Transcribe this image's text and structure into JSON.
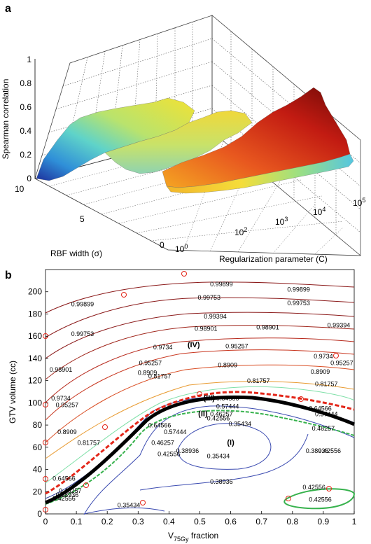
{
  "chart_data": [
    {
      "panel": "a",
      "type": "surface3d",
      "zlabel": "Spearman correlation",
      "ylabel": "RBF width (σ)",
      "xlabel": "Regularization parameter (C)",
      "zticks": [
        "0",
        "0.2",
        "0.4",
        "0.6",
        "0.8",
        "1"
      ],
      "yticks": [
        "10",
        "5",
        "0"
      ],
      "xticks": [
        {
          "base": "10",
          "exp": "0"
        },
        {
          "base": "10",
          "exp": "2"
        },
        {
          "base": "10",
          "exp": "3"
        },
        {
          "base": "10",
          "exp": "4"
        },
        {
          "base": "10",
          "exp": "5"
        }
      ],
      "zlim": [
        0,
        1
      ],
      "ylim": [
        0,
        10
      ],
      "xlim_log10": [
        0,
        5
      ],
      "colormap": [
        "#1d2f9c",
        "#2f8fd8",
        "#5fd3c9",
        "#b9e36d",
        "#f2e233",
        "#f5a623",
        "#d9281b",
        "#7a0b08"
      ]
    },
    {
      "panel": "b",
      "type": "contour",
      "xlabel": {
        "base": "V",
        "sub": "75Gy",
        "rest": " fraction"
      },
      "ylabel": "GTV volume (cc)",
      "xlim": [
        0,
        1
      ],
      "ylim": [
        0,
        220
      ],
      "xticks": [
        "0",
        "0.1",
        "0.2",
        "0.3",
        "0.4",
        "0.5",
        "0.6",
        "0.7",
        "0.8",
        "0.9",
        "1"
      ],
      "yticks": [
        "0",
        "20",
        "40",
        "60",
        "80",
        "100",
        "120",
        "140",
        "160",
        "180",
        "200"
      ],
      "level_labels": [
        {
          "text": "0.99899",
          "x": 0.12,
          "y": 187
        },
        {
          "text": "0.99899",
          "x": 0.57,
          "y": 205
        },
        {
          "text": "0.99899",
          "x": 0.82,
          "y": 200
        },
        {
          "text": "0.99753",
          "x": 0.12,
          "y": 160
        },
        {
          "text": "0.99753",
          "x": 0.53,
          "y": 193
        },
        {
          "text": "0.99753",
          "x": 0.82,
          "y": 188
        },
        {
          "text": "0.99394",
          "x": 0.55,
          "y": 176
        },
        {
          "text": "0.99394",
          "x": 0.95,
          "y": 168
        },
        {
          "text": "0.98901",
          "x": 0.05,
          "y": 128
        },
        {
          "text": "0.98901",
          "x": 0.52,
          "y": 165
        },
        {
          "text": "0.98901",
          "x": 0.72,
          "y": 166
        },
        {
          "text": "0.9734",
          "x": 0.05,
          "y": 102
        },
        {
          "text": "0.9734",
          "x": 0.38,
          "y": 148
        },
        {
          "text": "0.9734",
          "x": 0.9,
          "y": 140
        },
        {
          "text": "0.95257",
          "x": 0.07,
          "y": 96
        },
        {
          "text": "0.95257",
          "x": 0.34,
          "y": 134
        },
        {
          "text": "0.95257",
          "x": 0.62,
          "y": 149
        },
        {
          "text": "0.95257",
          "x": 0.96,
          "y": 134
        },
        {
          "text": "0.8909",
          "x": 0.07,
          "y": 72
        },
        {
          "text": "0.8909",
          "x": 0.33,
          "y": 125
        },
        {
          "text": "0.8909",
          "x": 0.59,
          "y": 132
        },
        {
          "text": "0.8909",
          "x": 0.89,
          "y": 126
        },
        {
          "text": "0.81757",
          "x": 0.14,
          "y": 62
        },
        {
          "text": "0.81757",
          "x": 0.37,
          "y": 122
        },
        {
          "text": "0.81757",
          "x": 0.69,
          "y": 118
        },
        {
          "text": "0.81757",
          "x": 0.91,
          "y": 115
        },
        {
          "text": "0.64566",
          "x": 0.06,
          "y": 30
        },
        {
          "text": "0.64566",
          "x": 0.37,
          "y": 78
        },
        {
          "text": "0.64566",
          "x": 0.59,
          "y": 102
        },
        {
          "text": "0.64566",
          "x": 0.89,
          "y": 93
        },
        {
          "text": "0.57444",
          "x": 0.42,
          "y": 72
        },
        {
          "text": "0.57444",
          "x": 0.59,
          "y": 95
        },
        {
          "text": "0.57444",
          "x": 0.91,
          "y": 88
        },
        {
          "text": "0.46257",
          "x": 0.08,
          "y": 19
        },
        {
          "text": "0.46257",
          "x": 0.38,
          "y": 62
        },
        {
          "text": "0.46257",
          "x": 0.57,
          "y": 88
        },
        {
          "text": "0.46257",
          "x": 0.9,
          "y": 75
        },
        {
          "text": "0.42556",
          "x": 0.06,
          "y": 12
        },
        {
          "text": "0.42556",
          "x": 0.4,
          "y": 52
        },
        {
          "text": "0.42556",
          "x": 0.56,
          "y": 84
        },
        {
          "text": "0.42556",
          "x": 0.92,
          "y": 55
        },
        {
          "text": "0.42556",
          "x": 0.87,
          "y": 22
        },
        {
          "text": "0.42556",
          "x": 0.89,
          "y": 11
        },
        {
          "text": "0.38936",
          "x": 0.07,
          "y": 15
        },
        {
          "text": "0.38936",
          "x": 0.46,
          "y": 55
        },
        {
          "text": "0.38936",
          "x": 0.88,
          "y": 55
        },
        {
          "text": "0.38936",
          "x": 0.57,
          "y": 27
        },
        {
          "text": "0.35434",
          "x": 0.27,
          "y": 6
        },
        {
          "text": "0.35434",
          "x": 0.63,
          "y": 79
        },
        {
          "text": "0.35434",
          "x": 0.56,
          "y": 50
        }
      ],
      "region_labels": [
        {
          "text": "(I)",
          "x": 0.6,
          "y": 62
        },
        {
          "text": "(II)",
          "x": 0.51,
          "y": 88
        },
        {
          "text": "(III)",
          "x": 0.53,
          "y": 102
        },
        {
          "text": "(IV)",
          "x": 0.48,
          "y": 150
        }
      ]
    }
  ],
  "panels": {
    "a_tag": "a",
    "b_tag": "b"
  }
}
